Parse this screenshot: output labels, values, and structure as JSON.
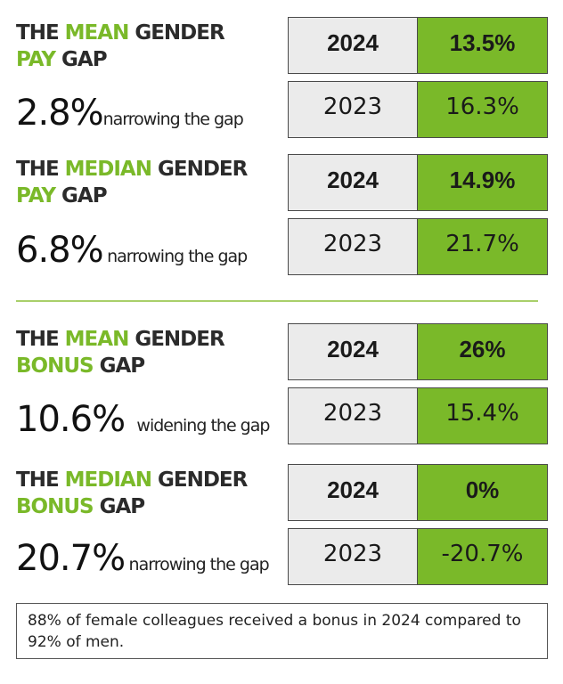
{
  "sections": [
    {
      "title": {
        "w1": "THE",
        "w2": "MEAN",
        "w3": "GENDER",
        "w4": "PAY",
        "w5": "GAP"
      },
      "change": {
        "value": "2.8%",
        "text": "narrowing the gap"
      },
      "current": {
        "year": "2024",
        "value": "13.5%"
      },
      "previous": {
        "year": "2023",
        "value": "16.3%"
      }
    },
    {
      "title": {
        "w1": "THE",
        "w2": "MEDIAN",
        "w3": "GENDER",
        "w4": "PAY",
        "w5": "GAP"
      },
      "change": {
        "value": "6.8%",
        "text": "narrowing the gap"
      },
      "current": {
        "year": "2024",
        "value": "14.9%"
      },
      "previous": {
        "year": "2023",
        "value": "21.7%"
      }
    },
    {
      "title": {
        "w1": "THE",
        "w2": "MEAN",
        "w3": "GENDER",
        "w4": "BONUS",
        "w5": "GAP"
      },
      "change": {
        "value": "10.6%",
        "text": "widening the gap"
      },
      "current": {
        "year": "2024",
        "value": "26%"
      },
      "previous": {
        "year": "2023",
        "value": "15.4%"
      }
    },
    {
      "title": {
        "w1": "THE",
        "w2": "MEDIAN",
        "w3": "GENDER",
        "w4": "BONUS",
        "w5": "GAP"
      },
      "change": {
        "value": "20.7%",
        "text": "narrowing the gap"
      },
      "current": {
        "year": "2024",
        "value": "0%"
      },
      "previous": {
        "year": "2023",
        "value": "-20.7%"
      }
    }
  ],
  "note": "88% of female colleagues received a bonus in 2024 compared to 92% of men.",
  "colors": {
    "accent": "#7ab929",
    "year_cell": "#ebebeb",
    "title": "#2b2b2b"
  }
}
